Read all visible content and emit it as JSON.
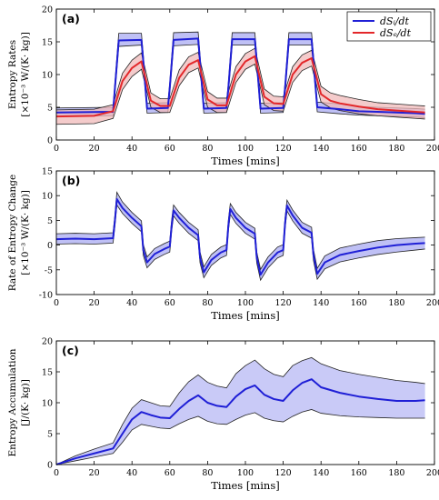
{
  "chart_data": [
    {
      "type": "line",
      "panel_label": "(a)",
      "xlabel": "Times [mins]",
      "ylabel_line1": "Entropy Rates",
      "ylabel_line2": "[×10⁻³ W/(K· kg)]",
      "xlim": [
        0,
        200
      ],
      "ylim": [
        0,
        20
      ],
      "xticks": [
        0,
        20,
        40,
        60,
        80,
        100,
        120,
        140,
        160,
        180,
        200
      ],
      "yticks": [
        0,
        5,
        10,
        15,
        20
      ],
      "legend_position": "top-right",
      "series": [
        {
          "name": "dSᵢ/dt",
          "color": "#1f1fd6",
          "band_color": "#a9abf2",
          "x": [
            0,
            30,
            31,
            33,
            45,
            46,
            48,
            59,
            60,
            62,
            75,
            76,
            78,
            90,
            91,
            93,
            105,
            106,
            108,
            120,
            121,
            123,
            135,
            136,
            138,
            150,
            160,
            170,
            180,
            190,
            195
          ],
          "values": [
            4.2,
            4.3,
            8,
            15.2,
            15.3,
            12,
            4.8,
            4.9,
            8,
            15.3,
            15.5,
            12,
            4.8,
            4.9,
            8,
            15.4,
            15.4,
            12,
            4.8,
            4.9,
            8,
            15.4,
            15.4,
            12,
            5,
            4.7,
            4.4,
            4.3,
            4.2,
            4.1,
            4.0
          ],
          "lower": [
            3.6,
            3.7,
            7.3,
            14.3,
            14.5,
            11.2,
            4.1,
            4.2,
            7.3,
            14.4,
            14.6,
            11.2,
            4.1,
            4.2,
            7.3,
            14.5,
            14.5,
            11.2,
            4.1,
            4.2,
            7.3,
            14.5,
            14.5,
            11.2,
            4.3,
            4.0,
            3.8,
            3.7,
            3.6,
            3.5,
            3.4
          ],
          "upper": [
            4.9,
            5.0,
            8.8,
            16.3,
            16.3,
            12.9,
            5.6,
            5.7,
            8.8,
            16.4,
            16.5,
            12.9,
            5.6,
            5.7,
            8.8,
            16.4,
            16.4,
            12.9,
            5.6,
            5.7,
            8.8,
            16.4,
            16.4,
            12.9,
            5.8,
            5.5,
            5.1,
            5.0,
            4.9,
            4.8,
            4.7
          ]
        },
        {
          "name": "dSₑ/dt",
          "color": "#e3272a",
          "band_color": "#f0b9b9",
          "x": [
            0,
            20,
            30,
            35,
            40,
            45,
            50,
            55,
            60,
            65,
            70,
            75,
            80,
            85,
            90,
            95,
            100,
            105,
            110,
            115,
            120,
            125,
            130,
            135,
            140,
            145,
            150,
            160,
            170,
            180,
            190,
            195
          ],
          "values": [
            3.6,
            3.7,
            4.4,
            9.0,
            11.0,
            12.0,
            6.0,
            5.2,
            5.2,
            9.5,
            11.5,
            12.2,
            6.2,
            5.3,
            5.3,
            10.0,
            12.0,
            12.8,
            6.6,
            5.6,
            5.5,
            10.0,
            11.8,
            12.5,
            7.0,
            6.0,
            5.6,
            5.1,
            4.7,
            4.5,
            4.3,
            4.2
          ],
          "lower": [
            2.4,
            2.5,
            3.3,
            7.7,
            9.7,
            10.8,
            5.0,
            4.2,
            4.2,
            8.3,
            10.3,
            11.0,
            5.0,
            4.2,
            4.2,
            8.8,
            10.8,
            11.6,
            5.4,
            4.5,
            4.4,
            8.8,
            10.6,
            11.3,
            5.8,
            4.9,
            4.5,
            4.0,
            3.7,
            3.5,
            3.3,
            3.2
          ],
          "upper": [
            4.6,
            4.7,
            5.4,
            10.2,
            12.2,
            13.3,
            7.2,
            6.3,
            6.3,
            10.7,
            12.7,
            13.4,
            7.4,
            6.4,
            6.4,
            11.2,
            13.2,
            14.0,
            7.8,
            6.7,
            6.6,
            11.2,
            13.0,
            13.7,
            8.2,
            7.2,
            6.8,
            6.2,
            5.7,
            5.5,
            5.3,
            5.2
          ]
        }
      ]
    },
    {
      "type": "line",
      "panel_label": "(b)",
      "xlabel": "Times [mins]",
      "ylabel_line1": "Rate of Entropy Change",
      "ylabel_line2": "[×10⁻³ W/(K· kg)]",
      "xlim": [
        0,
        200
      ],
      "ylim": [
        -10,
        15
      ],
      "xticks": [
        0,
        20,
        40,
        60,
        80,
        100,
        120,
        140,
        160,
        180,
        200
      ],
      "yticks": [
        -10,
        -5,
        0,
        5,
        10,
        15
      ],
      "series": [
        {
          "name": "",
          "color": "#1f1fd6",
          "band_color": "#a9abf2",
          "x": [
            0,
            10,
            20,
            30,
            31,
            32,
            35,
            40,
            45,
            46,
            48,
            52,
            57,
            60,
            61,
            62,
            65,
            70,
            75,
            76,
            78,
            82,
            87,
            90,
            91,
            92,
            95,
            100,
            105,
            106,
            108,
            112,
            117,
            120,
            121,
            122,
            125,
            130,
            135,
            136,
            138,
            142,
            150,
            160,
            170,
            180,
            190,
            195
          ],
          "values": [
            1.2,
            1.3,
            1.2,
            1.4,
            5.0,
            9.3,
            7.5,
            5.5,
            3.8,
            -1.0,
            -3.5,
            -1.8,
            -0.8,
            -0.3,
            4.0,
            7.0,
            5.5,
            3.5,
            2.0,
            -2.5,
            -5.5,
            -3.0,
            -1.5,
            -1.0,
            4.0,
            7.3,
            5.5,
            3.5,
            2.3,
            -2.5,
            -6.0,
            -3.5,
            -1.5,
            -1.0,
            4.5,
            8.0,
            6.0,
            3.5,
            2.5,
            -2.0,
            -5.8,
            -3.5,
            -2.0,
            -1.2,
            -0.5,
            0.0,
            0.3,
            0.4
          ],
          "lower": [
            0.2,
            0.3,
            0.2,
            0.4,
            4.0,
            8.1,
            6.4,
            4.4,
            2.7,
            -2.1,
            -4.6,
            -2.9,
            -1.9,
            -1.4,
            2.9,
            5.9,
            4.4,
            2.4,
            0.9,
            -3.6,
            -6.6,
            -4.1,
            -2.6,
            -2.1,
            2.9,
            6.2,
            4.4,
            2.4,
            1.2,
            -3.6,
            -7.1,
            -4.6,
            -2.6,
            -2.1,
            3.4,
            6.9,
            4.9,
            2.4,
            1.4,
            -3.1,
            -6.9,
            -4.8,
            -3.4,
            -2.6,
            -1.9,
            -1.4,
            -1.0,
            -0.8
          ],
          "upper": [
            2.3,
            2.4,
            2.3,
            2.5,
            6.1,
            10.7,
            8.7,
            6.6,
            4.9,
            0.1,
            -2.4,
            -0.7,
            0.3,
            0.8,
            5.1,
            8.1,
            6.6,
            4.6,
            3.1,
            -1.4,
            -4.4,
            -1.9,
            -0.4,
            0.1,
            5.1,
            8.4,
            6.6,
            4.6,
            3.4,
            -1.4,
            -4.9,
            -2.4,
            -0.4,
            0.1,
            5.6,
            9.1,
            7.1,
            4.6,
            3.6,
            -0.9,
            -4.7,
            -2.2,
            -0.6,
            0.2,
            0.9,
            1.3,
            1.5,
            1.6
          ]
        }
      ]
    },
    {
      "type": "line",
      "panel_label": "(c)",
      "xlabel": "Times [mins]",
      "ylabel_line1": "Entropy Accumulation",
      "ylabel_line2": "[J/(K· kg)]",
      "xlim": [
        0,
        200
      ],
      "ylim": [
        0,
        20
      ],
      "xticks": [
        0,
        20,
        40,
        60,
        80,
        100,
        120,
        140,
        160,
        180,
        200
      ],
      "yticks": [
        0,
        5,
        10,
        15,
        20
      ],
      "series": [
        {
          "name": "",
          "color": "#1f1fd6",
          "band_color": "#b7b8f4",
          "x": [
            0,
            10,
            20,
            30,
            35,
            40,
            45,
            50,
            55,
            60,
            65,
            70,
            75,
            80,
            85,
            90,
            95,
            100,
            105,
            110,
            115,
            120,
            125,
            130,
            135,
            140,
            150,
            160,
            170,
            180,
            190,
            195
          ],
          "values": [
            0,
            1.0,
            1.8,
            2.6,
            5.0,
            7.3,
            8.5,
            8.0,
            7.6,
            7.5,
            9.0,
            10.3,
            11.2,
            10.0,
            9.5,
            9.3,
            11.0,
            12.2,
            12.8,
            11.3,
            10.6,
            10.3,
            12.0,
            13.2,
            13.8,
            12.5,
            11.6,
            11.0,
            10.6,
            10.3,
            10.3,
            10.4
          ],
          "lower": [
            0,
            0.6,
            1.2,
            1.8,
            3.6,
            5.6,
            6.5,
            6.2,
            5.9,
            5.8,
            6.6,
            7.3,
            7.8,
            7.0,
            6.6,
            6.5,
            7.3,
            8.0,
            8.4,
            7.5,
            7.1,
            6.9,
            7.8,
            8.5,
            8.9,
            8.3,
            7.9,
            7.7,
            7.6,
            7.5,
            7.5,
            7.5
          ],
          "upper": [
            0,
            1.4,
            2.5,
            3.5,
            6.5,
            9.1,
            10.5,
            10.0,
            9.5,
            9.4,
            11.6,
            13.4,
            14.5,
            13.3,
            12.7,
            12.4,
            14.7,
            16.0,
            16.9,
            15.5,
            14.6,
            14.2,
            16.0,
            16.8,
            17.3,
            16.3,
            15.2,
            14.6,
            14.1,
            13.6,
            13.3,
            13.1
          ]
        }
      ]
    }
  ]
}
